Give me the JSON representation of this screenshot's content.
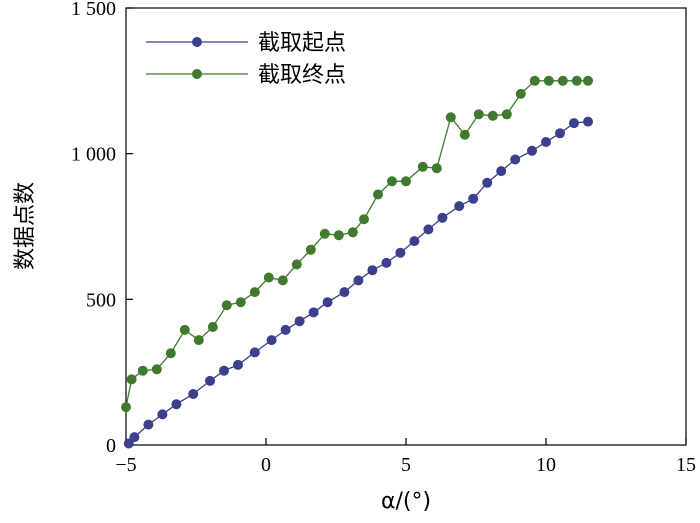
{
  "chart_data": {
    "type": "line",
    "xlabel": "α/(°)",
    "ylabel": "数据点数",
    "xlim": [
      -5,
      15
    ],
    "ylim": [
      0,
      1500
    ],
    "xticks": [
      -5,
      0,
      5,
      10,
      15
    ],
    "yticks": [
      0,
      500,
      1000,
      1500
    ],
    "xtick_labels": [
      "−5",
      "0",
      "5",
      "10",
      "15"
    ],
    "ytick_labels": [
      "0",
      "500",
      "1 000",
      "1 500"
    ],
    "grid": false,
    "legend": "top-left",
    "series": [
      {
        "name": "截取起点",
        "color": "#3b3f8c",
        "x": [
          -4.9,
          -4.7,
          -4.2,
          -3.7,
          -3.2,
          -2.6,
          -2.0,
          -1.5,
          -1.0,
          -0.4,
          0.2,
          0.7,
          1.2,
          1.7,
          2.2,
          2.8,
          3.3,
          3.8,
          4.3,
          4.8,
          5.3,
          5.8,
          6.3,
          6.9,
          7.4,
          7.9,
          8.4,
          8.9,
          9.5,
          10.0,
          10.5,
          11.0,
          11.5
        ],
        "y": [
          5,
          27,
          70,
          105,
          140,
          175,
          220,
          255,
          275,
          318,
          360,
          395,
          425,
          455,
          490,
          525,
          565,
          600,
          625,
          660,
          700,
          740,
          780,
          820,
          845,
          900,
          940,
          980,
          1010,
          1040,
          1070,
          1105,
          1110
        ]
      },
      {
        "name": "截取终点",
        "color": "#3f7a2e",
        "x": [
          -5.0,
          -4.8,
          -4.4,
          -3.9,
          -3.4,
          -2.9,
          -2.4,
          -1.9,
          -1.4,
          -0.9,
          -0.4,
          0.1,
          0.6,
          1.1,
          1.6,
          2.1,
          2.6,
          3.1,
          3.5,
          4.0,
          4.5,
          5.0,
          5.6,
          6.1,
          6.6,
          7.1,
          7.6,
          8.1,
          8.6,
          9.1,
          9.6,
          10.1,
          10.6,
          11.1,
          11.5
        ],
        "y": [
          130,
          225,
          255,
          260,
          315,
          395,
          360,
          405,
          480,
          490,
          525,
          575,
          565,
          620,
          670,
          725,
          720,
          730,
          775,
          860,
          905,
          905,
          955,
          950,
          1125,
          1065,
          1135,
          1130,
          1135,
          1205,
          1250,
          1250,
          1250,
          1250,
          1250
        ]
      }
    ]
  }
}
